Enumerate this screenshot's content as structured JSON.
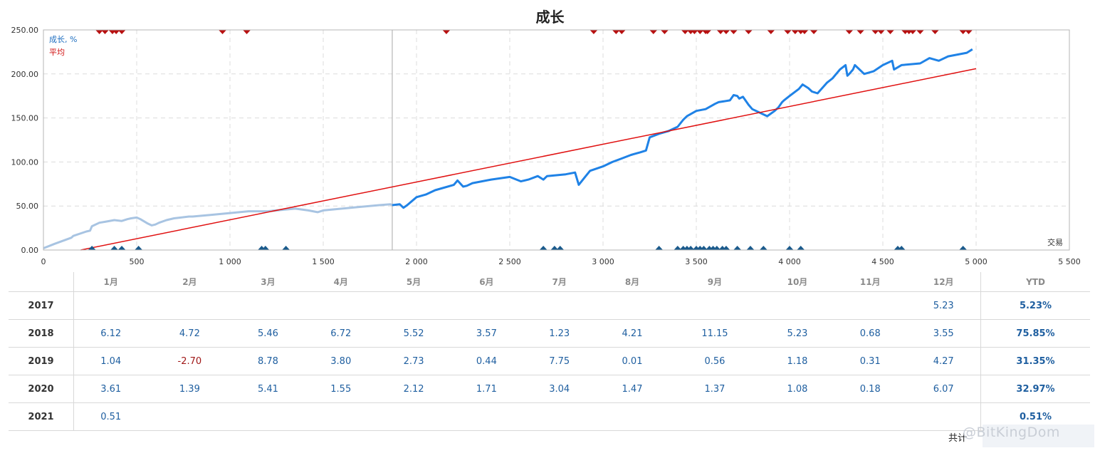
{
  "chart_data": {
    "type": "line",
    "title": "成长",
    "xlabel": "交易",
    "ylabel": "",
    "xlim": [
      0,
      5500
    ],
    "ylim": [
      0,
      250
    ],
    "x_ticks": [
      "0",
      "500",
      "1 000",
      "1 500",
      "2 000",
      "2 500",
      "3 000",
      "3 500",
      "4 000",
      "4 500",
      "5 000",
      "5 500"
    ],
    "y_ticks": [
      "0.00",
      "50.00",
      "100.00",
      "150.00",
      "200.00",
      "250.00"
    ],
    "grid": true,
    "legend_position": "top-left",
    "colors": {
      "growth_history": "#a8c4e2",
      "growth": "#1f82e6",
      "average": "#e01010",
      "top_markers": "#b81010",
      "bottom_markers": "#1a5a8c"
    },
    "divider_x": 1870,
    "series": [
      {
        "name": "成长, %",
        "x": [
          0,
          60,
          150,
          160,
          230,
          250,
          260,
          300,
          330,
          380,
          420,
          450,
          470,
          500,
          520,
          560,
          580,
          600,
          620,
          660,
          700,
          780,
          800,
          900,
          1000,
          1100,
          1200,
          1300,
          1350,
          1420,
          1470,
          1500,
          1600,
          1700,
          1800,
          1860,
          1870,
          1910,
          1930,
          1950,
          2000,
          2050,
          2100,
          2200,
          2220,
          2250,
          2270,
          2300,
          2400,
          2500,
          2560,
          2600,
          2650,
          2680,
          2700,
          2800,
          2850,
          2870,
          2900,
          2930,
          3000,
          3050,
          3100,
          3150,
          3200,
          3230,
          3250,
          3300,
          3350,
          3400,
          3430,
          3450,
          3500,
          3550,
          3600,
          3620,
          3680,
          3700,
          3720,
          3730,
          3750,
          3780,
          3800,
          3880,
          3920,
          3940,
          3960,
          3970,
          4000,
          4050,
          4070,
          4100,
          4120,
          4150,
          4200,
          4230,
          4250,
          4270,
          4300,
          4310,
          4320,
          4340,
          4350,
          4400,
          4450,
          4500,
          4550,
          4560,
          4600,
          4700,
          4750,
          4800,
          4850,
          4900,
          4950,
          4980
        ],
        "y": [
          2,
          7,
          14,
          16,
          21,
          22,
          27,
          31,
          32,
          34,
          33,
          35,
          36,
          37,
          35,
          30,
          28,
          29,
          31,
          34,
          36,
          38,
          38,
          40,
          42,
          44,
          44,
          46,
          47,
          45,
          43,
          45,
          47,
          49,
          51,
          52,
          51,
          52,
          48,
          51,
          60,
          63,
          68,
          74,
          79,
          72,
          73,
          76,
          80,
          83,
          78,
          80,
          84,
          80,
          84,
          86,
          88,
          74,
          82,
          90,
          95,
          100,
          104,
          108,
          111,
          113,
          128,
          132,
          135,
          140,
          148,
          152,
          158,
          160,
          166,
          168,
          170,
          176,
          175,
          172,
          174,
          165,
          160,
          152,
          158,
          162,
          168,
          170,
          175,
          183,
          188,
          184,
          180,
          178,
          190,
          195,
          200,
          205,
          210,
          198,
          200,
          205,
          210,
          200,
          203,
          210,
          215,
          205,
          210,
          212,
          218,
          215,
          220,
          222,
          224,
          228
        ]
      },
      {
        "name": "平均",
        "x": [
          200,
          5000
        ],
        "y": [
          0,
          206
        ]
      }
    ],
    "top_markers_x": [
      300,
      330,
      370,
      390,
      420,
      960,
      1090,
      2160,
      2950,
      3070,
      3100,
      3270,
      3330,
      3440,
      3470,
      3490,
      3520,
      3550,
      3560,
      3630,
      3660,
      3700,
      3780,
      3900,
      3990,
      4030,
      4060,
      4080,
      4130,
      4320,
      4380,
      4460,
      4490,
      4540,
      4620,
      4640,
      4660,
      4700,
      4780,
      4930,
      4960
    ],
    "bottom_markers_x": [
      260,
      380,
      420,
      510,
      1170,
      1190,
      1300,
      2680,
      2740,
      2770,
      3300,
      3400,
      3430,
      3450,
      3470,
      3500,
      3520,
      3540,
      3570,
      3590,
      3610,
      3640,
      3660,
      3720,
      3790,
      3860,
      4000,
      4060,
      4580,
      4600,
      4930
    ]
  },
  "table": {
    "months": [
      "1月",
      "2月",
      "3月",
      "4月",
      "5月",
      "6月",
      "7月",
      "8月",
      "9月",
      "10月",
      "11月",
      "12月"
    ],
    "ytd_header": "YTD",
    "rows": [
      {
        "year": "2017",
        "values": [
          "",
          "",
          "",
          "",
          "",
          "",
          "",
          "",
          "",
          "",
          "",
          "5.23"
        ],
        "ytd": "5.23%"
      },
      {
        "year": "2018",
        "values": [
          "6.12",
          "4.72",
          "5.46",
          "6.72",
          "5.52",
          "3.57",
          "1.23",
          "4.21",
          "11.15",
          "5.23",
          "0.68",
          "3.55"
        ],
        "ytd": "75.85%"
      },
      {
        "year": "2019",
        "values": [
          "1.04",
          "-2.70",
          "8.78",
          "3.80",
          "2.73",
          "0.44",
          "7.75",
          "0.01",
          "0.56",
          "1.18",
          "0.31",
          "4.27"
        ],
        "ytd": "31.35%"
      },
      {
        "year": "2020",
        "values": [
          "3.61",
          "1.39",
          "5.41",
          "1.55",
          "2.12",
          "1.71",
          "3.04",
          "1.47",
          "1.37",
          "1.08",
          "0.18",
          "6.07"
        ],
        "ytd": "32.97%"
      },
      {
        "year": "2021",
        "values": [
          "0.51",
          "",
          "",
          "",
          "",
          "",
          "",
          "",
          "",
          "",
          "",
          ""
        ],
        "ytd": "0.51%"
      }
    ],
    "total_label": "共计"
  },
  "watermark": "@BitKingDom"
}
